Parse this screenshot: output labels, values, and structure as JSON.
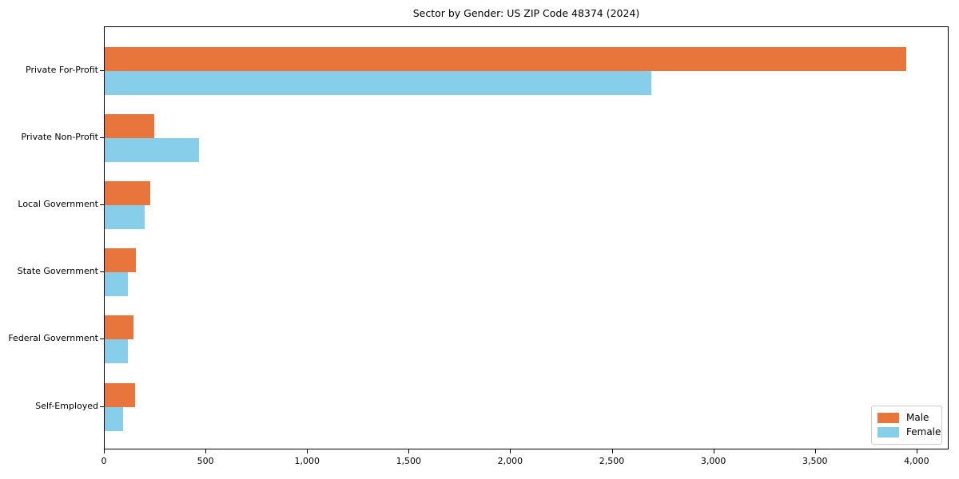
{
  "chart_data": {
    "type": "bar",
    "orientation": "horizontal",
    "title": "Sector by Gender: US ZIP Code 48374 (2024)",
    "categories": [
      "Private For-Profit",
      "Private Non-Profit",
      "Local Government",
      "State Government",
      "Federal Government",
      "Self-Employed"
    ],
    "series": [
      {
        "name": "Male",
        "color": "#E8763C",
        "values": [
          3952,
          244,
          224,
          153,
          141,
          148
        ]
      },
      {
        "name": "Female",
        "color": "#87CEEB",
        "values": [
          2694,
          464,
          197,
          114,
          113,
          90
        ]
      }
    ],
    "xlim": [
      0,
      4158
    ],
    "xticks": [
      0,
      500,
      1000,
      1500,
      2000,
      2500,
      3000,
      3500,
      4000
    ],
    "xtick_labels": [
      "0",
      "500",
      "1,000",
      "1,500",
      "2,000",
      "2,500",
      "3,000",
      "3,500",
      "4,000"
    ],
    "xlabel": "",
    "ylabel": "",
    "grid": false,
    "legend_position": "lower right",
    "axis_color": "#000000",
    "background_color": "#ffffff"
  }
}
